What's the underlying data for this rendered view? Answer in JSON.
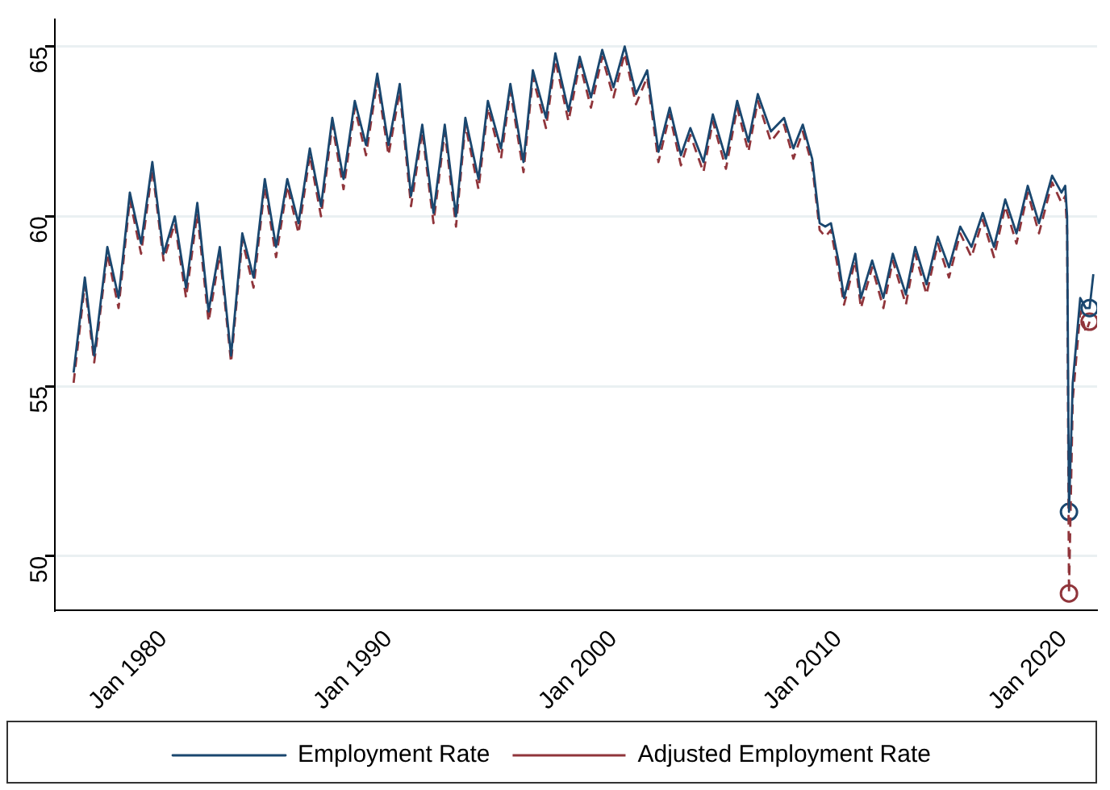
{
  "chart_data": {
    "type": "line",
    "x": [
      "1976-01",
      "1976-07",
      "1976-12",
      "1977-07",
      "1978-01",
      "1978-07",
      "1979-01",
      "1979-07",
      "1980-01",
      "1980-07",
      "1981-01",
      "1981-07",
      "1982-01",
      "1982-07",
      "1983-01",
      "1983-07",
      "1984-01",
      "1984-07",
      "1985-01",
      "1985-07",
      "1986-01",
      "1986-07",
      "1987-01",
      "1987-07",
      "1988-01",
      "1988-07",
      "1989-01",
      "1989-07",
      "1990-01",
      "1990-07",
      "1991-01",
      "1991-07",
      "1992-01",
      "1992-07",
      "1993-01",
      "1993-06",
      "1994-01",
      "1994-06",
      "1995-01",
      "1995-06",
      "1996-01",
      "1996-06",
      "1997-01",
      "1997-06",
      "1998-01",
      "1998-07",
      "1999-01",
      "1999-07",
      "2000-01",
      "2000-07",
      "2001-01",
      "2001-07",
      "2002-01",
      "2002-07",
      "2003-01",
      "2003-06",
      "2004-01",
      "2004-06",
      "2005-01",
      "2005-07",
      "2006-01",
      "2006-06",
      "2007-01",
      "2007-08",
      "2008-01",
      "2008-06",
      "2008-11",
      "2009-03",
      "2009-06",
      "2009-09",
      "2010-01",
      "2010-04",
      "2010-10",
      "2011-01",
      "2011-07",
      "2012-01",
      "2012-06",
      "2013-01",
      "2013-06",
      "2013-12",
      "2014-06",
      "2014-12",
      "2015-06",
      "2015-12",
      "2016-06",
      "2016-12",
      "2017-06",
      "2017-12",
      "2018-06",
      "2018-12",
      "2019-07",
      "2019-12",
      "2020-02",
      "2020-03",
      "2020-04",
      "2020-06",
      "2020-10",
      "2021-01",
      "2021-03",
      "2021-05"
    ],
    "series": [
      {
        "name": "Employment Rate",
        "color": "#1a476f",
        "line_style": "solid",
        "marker": "none",
        "values": [
          55.4,
          58.2,
          55.9,
          59.1,
          57.6,
          60.7,
          59.2,
          61.6,
          58.9,
          60.0,
          57.9,
          60.4,
          57.2,
          59.1,
          55.9,
          59.5,
          58.2,
          61.1,
          59.1,
          61.1,
          59.8,
          62.0,
          60.3,
          62.9,
          61.1,
          63.4,
          62.1,
          64.2,
          62.1,
          63.9,
          60.6,
          62.7,
          60.1,
          62.7,
          60.0,
          62.9,
          61.1,
          63.4,
          62.0,
          63.9,
          61.6,
          64.3,
          62.9,
          64.8,
          63.1,
          64.7,
          63.5,
          64.9,
          63.8,
          65.0,
          63.6,
          64.3,
          61.9,
          63.2,
          61.8,
          62.6,
          61.6,
          63.0,
          61.7,
          63.4,
          62.2,
          63.6,
          62.5,
          62.9,
          62.0,
          62.7,
          61.7,
          59.8,
          59.7,
          59.8,
          58.7,
          57.6,
          58.9,
          57.6,
          58.7,
          57.6,
          58.9,
          57.7,
          59.1,
          58.0,
          59.4,
          58.5,
          59.7,
          59.1,
          60.1,
          59.1,
          60.5,
          59.5,
          60.9,
          59.8,
          61.2,
          60.7,
          60.9,
          60.0,
          51.3,
          55.1,
          57.6,
          57.3,
          57.3,
          58.3
        ]
      },
      {
        "name": "Adjusted Employment Rate",
        "color": "#90353b",
        "line_style": "dashed",
        "marker": "none",
        "values": [
          55.1,
          58.0,
          55.7,
          58.9,
          57.3,
          60.5,
          58.9,
          61.4,
          58.7,
          59.8,
          57.6,
          60.1,
          56.9,
          58.9,
          55.7,
          59.3,
          57.9,
          60.9,
          58.8,
          60.9,
          59.5,
          61.8,
          60.0,
          62.7,
          60.8,
          63.2,
          61.8,
          64.0,
          61.8,
          63.7,
          60.3,
          62.5,
          59.8,
          62.5,
          59.7,
          62.7,
          60.8,
          63.2,
          61.7,
          63.7,
          61.3,
          64.1,
          62.6,
          64.6,
          62.8,
          64.5,
          63.2,
          64.7,
          63.5,
          64.8,
          63.3,
          64.1,
          61.6,
          63.0,
          61.5,
          62.4,
          61.3,
          62.8,
          61.4,
          63.2,
          61.9,
          63.4,
          62.2,
          62.7,
          61.7,
          62.5,
          61.5,
          59.6,
          59.4,
          59.6,
          58.4,
          57.4,
          58.7,
          57.3,
          58.5,
          57.3,
          58.7,
          57.4,
          58.9,
          57.7,
          59.2,
          58.2,
          59.5,
          58.8,
          59.9,
          58.8,
          60.3,
          59.2,
          60.7,
          59.5,
          61.0,
          60.4,
          60.6,
          59.6,
          48.9,
          54.6,
          57.2,
          56.6,
          56.9,
          null
        ]
      },
      {
        "type": "scatter",
        "color": "#1a476f",
        "marker": "circle",
        "x": [
          "2020-04",
          "2021-03"
        ],
        "values": [
          51.3,
          57.3
        ]
      },
      {
        "type": "scatter",
        "color": "#90353b",
        "marker": "circle",
        "x": [
          "2020-04",
          "2021-03"
        ],
        "values": [
          48.9,
          56.9
        ]
      }
    ],
    "xlim": [
      "1975-03",
      "2021-07"
    ],
    "xticks": [
      {
        "value": "1980-01",
        "label": "Jan 1980"
      },
      {
        "value": "1990-01",
        "label": "Jan 1990"
      },
      {
        "value": "2000-01",
        "label": "Jan 2000"
      },
      {
        "value": "2010-01",
        "label": "Jan 2010"
      },
      {
        "value": "2020-01",
        "label": "Jan 2020"
      }
    ],
    "ylim": [
      48.4,
      65.8
    ],
    "yticks": [
      50,
      55,
      60,
      65
    ],
    "grid": "y",
    "legend": "bottom"
  }
}
